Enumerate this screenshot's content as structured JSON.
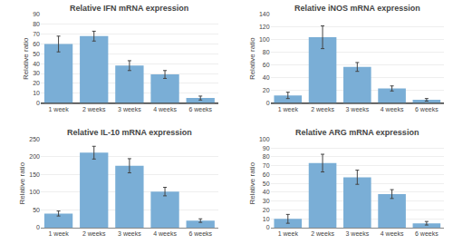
{
  "chart_data": [
    {
      "type": "bar",
      "title": "Relative IFN mRNA expression",
      "ylabel": "Relative ratio",
      "categories": [
        "1 week",
        "2 weeks",
        "3 weeks",
        "4 weeks",
        "6 weeks"
      ],
      "values": [
        60,
        68,
        38,
        29,
        5
      ],
      "errors": [
        8,
        5,
        5,
        4,
        2
      ],
      "color": "#7aaed6",
      "ylim": [
        0,
        90
      ],
      "yticks": [
        0,
        10,
        20,
        30,
        40,
        50,
        60,
        70,
        80,
        90
      ]
    },
    {
      "type": "bar",
      "title": "Relative iNOS mRNA expression",
      "ylabel": "Relative ratio",
      "categories": [
        "1 week",
        "2 weeks",
        "3 weeks",
        "4 weeks",
        "6 weeks"
      ],
      "values": [
        12,
        104,
        57,
        23,
        5
      ],
      "errors": [
        5,
        18,
        7,
        4,
        2
      ],
      "color": "#7aaed6",
      "ylim": [
        0,
        140
      ],
      "yticks": [
        0,
        20,
        40,
        60,
        80,
        100,
        120,
        140
      ]
    },
    {
      "type": "bar",
      "title": "Relative IL-10 mRNA expression",
      "ylabel": "Relative ratio",
      "categories": [
        "1 week",
        "2 weeks",
        "3 weeks",
        "4 weeks",
        "6 weeks"
      ],
      "values": [
        40,
        212,
        175,
        102,
        20
      ],
      "errors": [
        7,
        18,
        20,
        12,
        5
      ],
      "color": "#7aaed6",
      "ylim": [
        0,
        250
      ],
      "yticks": [
        0,
        50,
        100,
        150,
        200,
        250
      ]
    },
    {
      "type": "bar",
      "title": "Relative ARG mRNA expression",
      "ylabel": "Relative ratio",
      "categories": [
        "1 week",
        "2 weeks",
        "3 weeks",
        "4 weeks",
        "6 weeks"
      ],
      "values": [
        10,
        73,
        57,
        38,
        5
      ],
      "errors": [
        5,
        10,
        8,
        5,
        2
      ],
      "color": "#7aaed6",
      "ylim": [
        0,
        100
      ],
      "yticks": [
        0,
        10,
        20,
        30,
        40,
        50,
        60,
        70,
        80,
        90,
        100
      ]
    }
  ]
}
